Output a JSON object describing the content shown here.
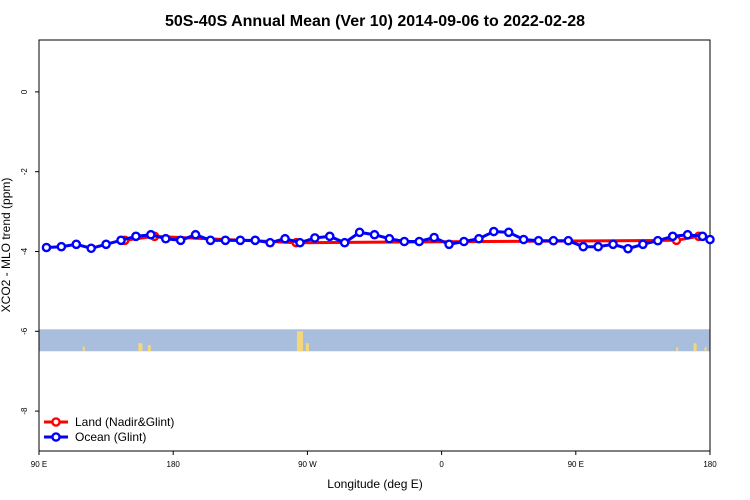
{
  "chart_data": {
    "type": "line",
    "title": "50S-40S Annual Mean (Ver 10)   2014-09-06 to 2022-02-28",
    "xlabel": "Longitude (deg E)",
    "ylabel": "XCO2 - MLO trend (ppm)",
    "xlim": [
      90,
      540
    ],
    "ylim": [
      -9,
      1.3
    ],
    "x_ticks": [
      {
        "value": 90,
        "label": "90 E"
      },
      {
        "value": 180,
        "label": "180"
      },
      {
        "value": 270,
        "label": "90 W"
      },
      {
        "value": 360,
        "label": "0"
      },
      {
        "value": 450,
        "label": "90 E"
      },
      {
        "value": 540,
        "label": "180"
      }
    ],
    "y_ticks": [
      {
        "value": 0,
        "label": "0"
      },
      {
        "value": -2,
        "label": "-2"
      },
      {
        "value": -4,
        "label": "-4"
      },
      {
        "value": -6,
        "label": "-6"
      },
      {
        "value": -8,
        "label": "-8"
      }
    ],
    "grid": false,
    "legend_position": "bottom-left",
    "land_band": {
      "y_top": -5.95,
      "y_bottom": -6.5,
      "color": "#a9bedc",
      "land_color": "#f5d77a"
    },
    "series": [
      {
        "name": "Land (Nadir&Glint)",
        "color": "#ff0000",
        "x": [
          147.5,
          167.5,
          262.5,
          517.5,
          532.5
        ],
        "y": [
          -3.72,
          -3.62,
          -3.78,
          -3.72,
          -3.62
        ]
      },
      {
        "name": "Ocean (Glint)",
        "color": "#0000ff",
        "x": [
          95,
          105,
          115,
          125,
          135,
          145,
          155,
          165,
          175,
          185,
          195,
          205,
          215,
          225,
          235,
          245,
          255,
          265,
          275,
          285,
          295,
          305,
          315,
          325,
          335,
          345,
          355,
          365,
          375,
          385,
          395,
          405,
          415,
          425,
          435,
          445,
          455,
          465,
          475,
          485,
          495,
          505,
          515,
          525,
          535,
          540
        ],
        "y": [
          -3.9,
          -3.88,
          -3.82,
          -3.92,
          -3.82,
          -3.72,
          -3.62,
          -3.58,
          -3.68,
          -3.72,
          -3.58,
          -3.72,
          -3.72,
          -3.72,
          -3.72,
          -3.78,
          -3.68,
          -3.78,
          -3.66,
          -3.62,
          -3.78,
          -3.52,
          -3.58,
          -3.68,
          -3.75,
          -3.75,
          -3.65,
          -3.82,
          -3.75,
          -3.68,
          -3.5,
          -3.52,
          -3.7,
          -3.73,
          -3.73,
          -3.73,
          -3.88,
          -3.88,
          -3.82,
          -3.93,
          -3.82,
          -3.73,
          -3.62,
          -3.58,
          -3.62,
          -3.7
        ]
      }
    ]
  }
}
